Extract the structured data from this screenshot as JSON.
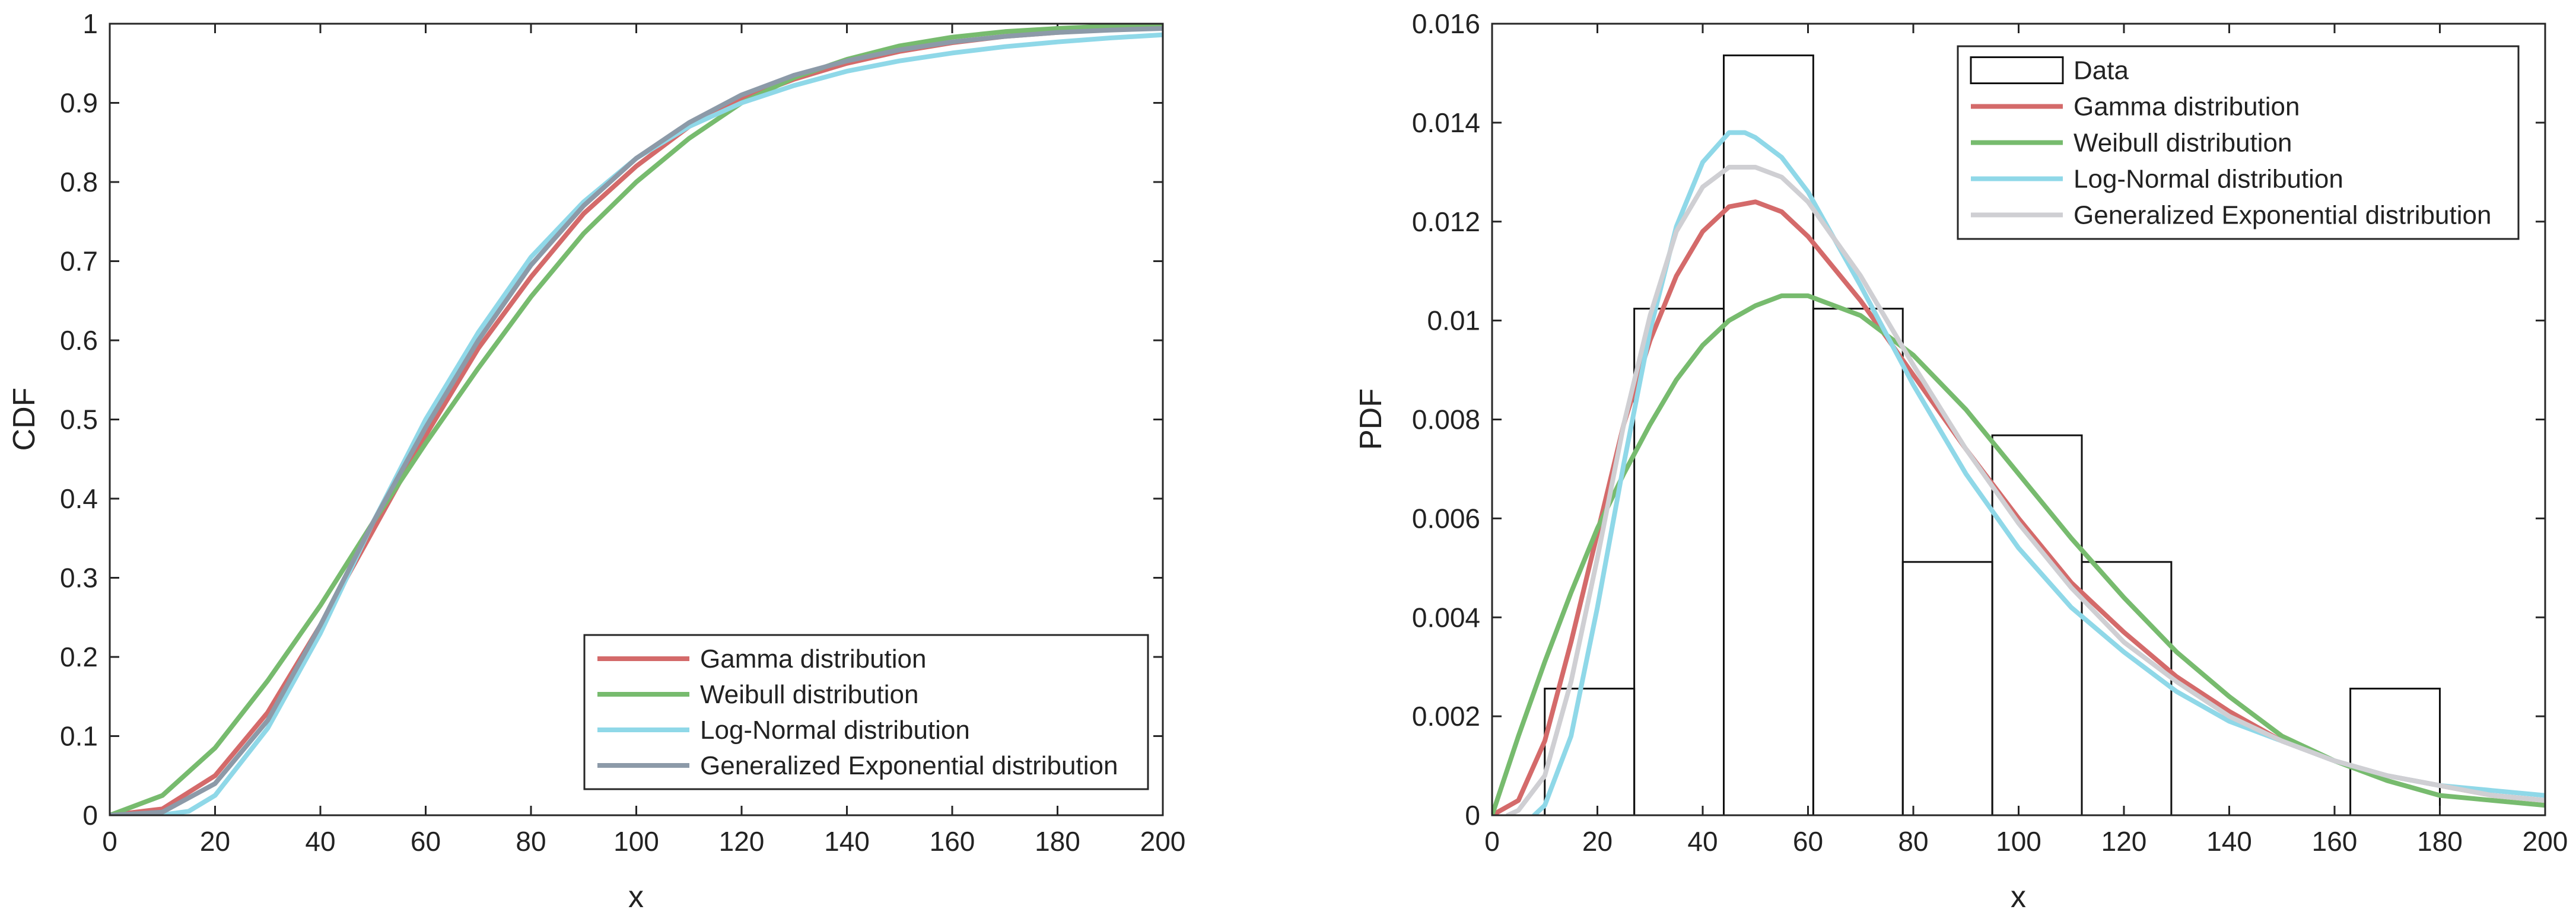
{
  "chart_data": [
    {
      "type": "line",
      "id": "cdf",
      "xlabel": "x",
      "ylabel": "CDF",
      "xlim": [
        0,
        200
      ],
      "ylim": [
        0,
        1
      ],
      "xticks": [
        0,
        20,
        40,
        60,
        80,
        100,
        120,
        140,
        160,
        180,
        200
      ],
      "yticks": [
        0,
        0.1,
        0.2,
        0.3,
        0.4,
        0.5,
        0.6,
        0.7,
        0.8,
        0.9,
        1
      ],
      "xtick_labels": [
        "0",
        "20",
        "40",
        "60",
        "80",
        "100",
        "120",
        "140",
        "160",
        "180",
        "200"
      ],
      "ytick_labels": [
        "0",
        "0.1",
        "0.2",
        "0.3",
        "0.4",
        "0.5",
        "0.6",
        "0.7",
        "0.8",
        "0.9",
        "1"
      ],
      "legend_position": "bottom-right",
      "grid": false,
      "series": [
        {
          "name": "Gamma distribution",
          "color": "#d46a6a",
          "x": [
            0,
            10,
            20,
            30,
            40,
            50,
            60,
            70,
            80,
            90,
            100,
            110,
            120,
            130,
            140,
            150,
            160,
            170,
            180,
            190,
            200
          ],
          "values": [
            0,
            0.008,
            0.05,
            0.13,
            0.24,
            0.36,
            0.48,
            0.59,
            0.68,
            0.76,
            0.82,
            0.87,
            0.905,
            0.93,
            0.95,
            0.965,
            0.976,
            0.984,
            0.989,
            0.993,
            0.995
          ]
        },
        {
          "name": "Weibull distribution",
          "color": "#77bb6e",
          "x": [
            0,
            10,
            20,
            30,
            40,
            50,
            60,
            70,
            80,
            90,
            100,
            110,
            120,
            130,
            140,
            150,
            160,
            170,
            180,
            190,
            200
          ],
          "values": [
            0,
            0.025,
            0.085,
            0.17,
            0.265,
            0.37,
            0.47,
            0.565,
            0.655,
            0.735,
            0.8,
            0.855,
            0.9,
            0.932,
            0.955,
            0.972,
            0.983,
            0.99,
            0.994,
            0.997,
            0.998
          ]
        },
        {
          "name": "Log-Normal distribution",
          "color": "#8fd8e8",
          "x": [
            0,
            10,
            15,
            20,
            30,
            40,
            50,
            60,
            70,
            80,
            90,
            100,
            110,
            120,
            130,
            140,
            150,
            160,
            170,
            180,
            190,
            200
          ],
          "values": [
            0,
            0.0005,
            0.005,
            0.025,
            0.11,
            0.23,
            0.37,
            0.5,
            0.61,
            0.705,
            0.775,
            0.83,
            0.87,
            0.9,
            0.922,
            0.94,
            0.953,
            0.963,
            0.971,
            0.977,
            0.982,
            0.986
          ]
        },
        {
          "name": "Generalized Exponential distribution",
          "color": "#8c9aa8",
          "x": [
            0,
            10,
            20,
            30,
            40,
            50,
            60,
            70,
            80,
            90,
            100,
            110,
            120,
            130,
            140,
            150,
            160,
            170,
            180,
            190,
            200
          ],
          "values": [
            0,
            0.004,
            0.04,
            0.12,
            0.24,
            0.37,
            0.49,
            0.6,
            0.695,
            0.77,
            0.83,
            0.875,
            0.91,
            0.935,
            0.953,
            0.967,
            0.977,
            0.984,
            0.989,
            0.992,
            0.994
          ]
        }
      ]
    },
    {
      "type": "bar",
      "id": "pdf",
      "xlabel": "x",
      "ylabel": "PDF",
      "xlim": [
        0,
        200
      ],
      "ylim": [
        0,
        0.016
      ],
      "xticks": [
        0,
        20,
        40,
        60,
        80,
        100,
        120,
        140,
        160,
        180,
        200
      ],
      "yticks": [
        0,
        0.002,
        0.004,
        0.006,
        0.008,
        0.01,
        0.012,
        0.014,
        0.016
      ],
      "xtick_labels": [
        "0",
        "20",
        "40",
        "60",
        "80",
        "100",
        "120",
        "140",
        "160",
        "180",
        "200"
      ],
      "ytick_labels": [
        "0",
        "0.002",
        "0.004",
        "0.006",
        "0.008",
        "0.01",
        "0.012",
        "0.014",
        "0.016"
      ],
      "legend_position": "top-right",
      "grid": false,
      "histogram": {
        "name": "Data",
        "edges": [
          10,
          27,
          44,
          61,
          78,
          95,
          112,
          129,
          146,
          163,
          180
        ],
        "values": [
          0.00256,
          0.01024,
          0.01536,
          0.01024,
          0.00512,
          0.00768,
          0.00512,
          0,
          0,
          0.00256
        ]
      },
      "series": [
        {
          "name": "Gamma distribution",
          "color": "#d46a6a",
          "x": [
            0,
            5,
            10,
            15,
            20,
            25,
            30,
            35,
            40,
            45,
            50,
            55,
            60,
            70,
            80,
            90,
            100,
            110,
            120,
            130,
            140,
            150,
            160,
            170,
            180,
            190,
            200
          ],
          "values": [
            0,
            0.0003,
            0.0015,
            0.0035,
            0.0057,
            0.0079,
            0.0096,
            0.0109,
            0.0118,
            0.0123,
            0.0124,
            0.0122,
            0.0117,
            0.0104,
            0.0089,
            0.0074,
            0.006,
            0.0047,
            0.0037,
            0.0028,
            0.0021,
            0.0015,
            0.0011,
            0.0008,
            0.0006,
            0.0004,
            0.0003
          ]
        },
        {
          "name": "Weibull distribution",
          "color": "#77bb6e",
          "x": [
            0,
            5,
            10,
            15,
            20,
            25,
            30,
            35,
            40,
            45,
            50,
            55,
            60,
            70,
            80,
            90,
            100,
            110,
            120,
            130,
            140,
            150,
            160,
            170,
            180,
            190,
            200
          ],
          "values": [
            0,
            0.0016,
            0.0031,
            0.0045,
            0.0058,
            0.0069,
            0.0079,
            0.0088,
            0.0095,
            0.01,
            0.0103,
            0.0105,
            0.0105,
            0.0101,
            0.0093,
            0.0082,
            0.0069,
            0.0056,
            0.0044,
            0.0033,
            0.0024,
            0.0016,
            0.0011,
            0.0007,
            0.0004,
            0.0003,
            0.0002
          ]
        },
        {
          "name": "Log-Normal distribution",
          "color": "#8fd8e8",
          "x": [
            8,
            10,
            15,
            20,
            25,
            30,
            35,
            40,
            45,
            48,
            50,
            55,
            60,
            70,
            80,
            90,
            100,
            110,
            120,
            130,
            140,
            150,
            160,
            170,
            180,
            190,
            200
          ],
          "values": [
            0,
            0.0002,
            0.0016,
            0.0042,
            0.0071,
            0.0098,
            0.0119,
            0.0132,
            0.0138,
            0.0138,
            0.0137,
            0.0133,
            0.0126,
            0.0107,
            0.0087,
            0.0069,
            0.0054,
            0.0042,
            0.0033,
            0.0025,
            0.0019,
            0.0015,
            0.0011,
            0.0008,
            0.0006,
            0.0005,
            0.0004
          ]
        },
        {
          "name": "Generalized Exponential distribution",
          "color": "#cfcfd3",
          "x": [
            3,
            5,
            10,
            15,
            20,
            25,
            30,
            35,
            40,
            45,
            50,
            55,
            60,
            70,
            80,
            90,
            100,
            110,
            120,
            130,
            140,
            150,
            160,
            170,
            180,
            190,
            200
          ],
          "values": [
            0,
            0.0001,
            0.0008,
            0.0027,
            0.0052,
            0.0079,
            0.0101,
            0.0118,
            0.0127,
            0.0131,
            0.0131,
            0.0129,
            0.0124,
            0.0109,
            0.0091,
            0.0074,
            0.0059,
            0.0046,
            0.0035,
            0.0027,
            0.002,
            0.0015,
            0.0011,
            0.0008,
            0.0006,
            0.0004,
            0.0003
          ]
        }
      ]
    }
  ]
}
